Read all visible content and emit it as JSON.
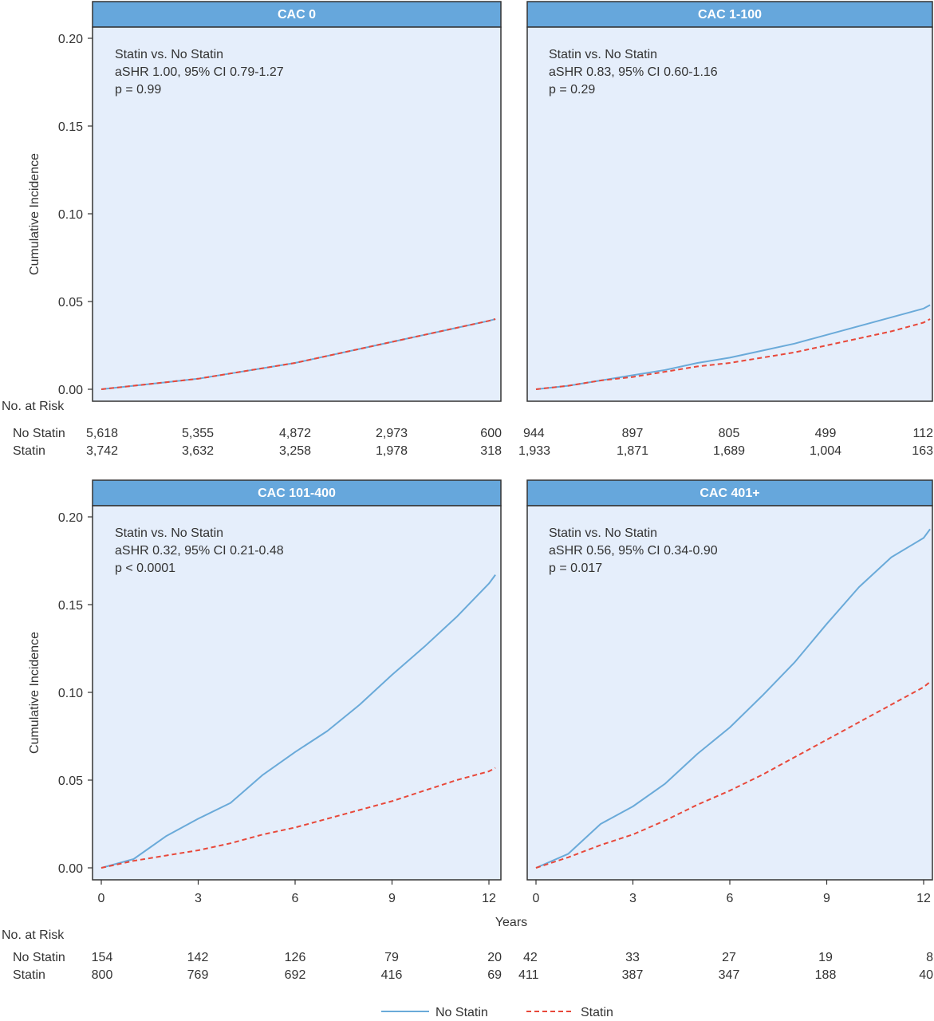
{
  "chart_data": {
    "type": "line",
    "y_axis_title": "Cumulative Incidence",
    "x_axis_title": "Years",
    "x_ticks": [
      0,
      3,
      6,
      9,
      12
    ],
    "y_ticks": [
      "0.00",
      "0.05",
      "0.10",
      "0.15",
      "0.20"
    ],
    "xlim": [
      0,
      12.25
    ],
    "ylim": [
      0,
      0.21
    ],
    "risk_header": "No. at Risk",
    "legend": {
      "placement": "bottom-center",
      "items": [
        {
          "label": "No Statin",
          "color": "#6aaad9",
          "dash": "solid"
        },
        {
          "label": "Statin",
          "color": "#e8483a",
          "dash": "dashed"
        }
      ]
    },
    "panels": [
      {
        "title": "CAC 0",
        "annotation": [
          "Statin vs. No Statin",
          "aSHR 1.00, 95% CI 0.79-1.27",
          "p = 0.99"
        ],
        "series": [
          {
            "name": "No Statin",
            "x": [
              0,
              1,
              2,
              3,
              4,
              5,
              6,
              7,
              8,
              9,
              10,
              11,
              12,
              12.2
            ],
            "y": [
              0,
              0.002,
              0.004,
              0.006,
              0.009,
              0.012,
              0.015,
              0.019,
              0.023,
              0.027,
              0.031,
              0.035,
              0.039,
              0.04
            ]
          },
          {
            "name": "Statin",
            "x": [
              0,
              1,
              2,
              3,
              4,
              5,
              6,
              7,
              8,
              9,
              10,
              11,
              12,
              12.2
            ],
            "y": [
              0,
              0.002,
              0.004,
              0.006,
              0.009,
              0.012,
              0.015,
              0.019,
              0.023,
              0.027,
              0.031,
              0.035,
              0.039,
              0.04
            ]
          }
        ],
        "at_risk": {
          "No Statin": [
            "5,618",
            "5,355",
            "4,872",
            "2,973",
            "600"
          ],
          "Statin": [
            "3,742",
            "3,632",
            "3,258",
            "1,978",
            "318"
          ]
        }
      },
      {
        "title": "CAC 1-100",
        "annotation": [
          "Statin vs. No Statin",
          "aSHR 0.83, 95% CI 0.60-1.16",
          "p = 0.29"
        ],
        "series": [
          {
            "name": "No Statin",
            "x": [
              0,
              1,
              2,
              3,
              4,
              5,
              6,
              7,
              8,
              9,
              10,
              11,
              12,
              12.2
            ],
            "y": [
              0,
              0.002,
              0.005,
              0.008,
              0.011,
              0.015,
              0.018,
              0.022,
              0.026,
              0.031,
              0.036,
              0.041,
              0.046,
              0.048
            ]
          },
          {
            "name": "Statin",
            "x": [
              0,
              1,
              2,
              3,
              4,
              5,
              6,
              7,
              8,
              9,
              10,
              11,
              12,
              12.2
            ],
            "y": [
              0,
              0.002,
              0.005,
              0.007,
              0.01,
              0.013,
              0.015,
              0.018,
              0.021,
              0.025,
              0.029,
              0.033,
              0.038,
              0.04
            ]
          }
        ],
        "at_risk": {
          "No Statin": [
            "944",
            "897",
            "805",
            "499",
            "112"
          ],
          "Statin": [
            "1,933",
            "1,871",
            "1,689",
            "1,004",
            "163"
          ]
        }
      },
      {
        "title": "CAC 101-400",
        "annotation": [
          "Statin vs. No Statin",
          "aSHR 0.32, 95% CI 0.21-0.48",
          "p < 0.0001"
        ],
        "series": [
          {
            "name": "No Statin",
            "x": [
              0,
              1,
              2,
              3,
              4,
              5,
              6,
              7,
              8,
              9,
              10,
              11,
              12,
              12.2
            ],
            "y": [
              0,
              0.005,
              0.018,
              0.028,
              0.037,
              0.053,
              0.066,
              0.078,
              0.093,
              0.11,
              0.126,
              0.143,
              0.162,
              0.167
            ]
          },
          {
            "name": "Statin",
            "x": [
              0,
              1,
              2,
              3,
              4,
              5,
              6,
              7,
              8,
              9,
              10,
              11,
              12,
              12.2
            ],
            "y": [
              0,
              0.004,
              0.007,
              0.01,
              0.014,
              0.019,
              0.023,
              0.028,
              0.033,
              0.038,
              0.044,
              0.05,
              0.055,
              0.057
            ]
          }
        ],
        "at_risk": {
          "No Statin": [
            "154",
            "142",
            "126",
            "79",
            "20"
          ],
          "Statin": [
            "800",
            "769",
            "692",
            "416",
            "69"
          ]
        }
      },
      {
        "title": "CAC 401+",
        "annotation": [
          "Statin vs. No Statin",
          "aSHR 0.56, 95% CI 0.34-0.90",
          "p = 0.017"
        ],
        "series": [
          {
            "name": "No Statin",
            "x": [
              0,
              1,
              2,
              3,
              4,
              5,
              6,
              7,
              8,
              9,
              10,
              11,
              12,
              12.2
            ],
            "y": [
              0,
              0.008,
              0.025,
              0.035,
              0.048,
              0.065,
              0.08,
              0.098,
              0.117,
              0.139,
              0.16,
              0.177,
              0.188,
              0.193
            ]
          },
          {
            "name": "Statin",
            "x": [
              0,
              1,
              2,
              3,
              4,
              5,
              6,
              7,
              8,
              9,
              10,
              11,
              12,
              12.2
            ],
            "y": [
              0,
              0.006,
              0.013,
              0.019,
              0.027,
              0.036,
              0.044,
              0.053,
              0.063,
              0.073,
              0.083,
              0.093,
              0.103,
              0.106
            ]
          }
        ],
        "at_risk": {
          "No Statin": [
            "42",
            "33",
            "27",
            "19",
            "8"
          ],
          "Statin": [
            "411",
            "387",
            "347",
            "188",
            "40"
          ]
        }
      }
    ]
  }
}
